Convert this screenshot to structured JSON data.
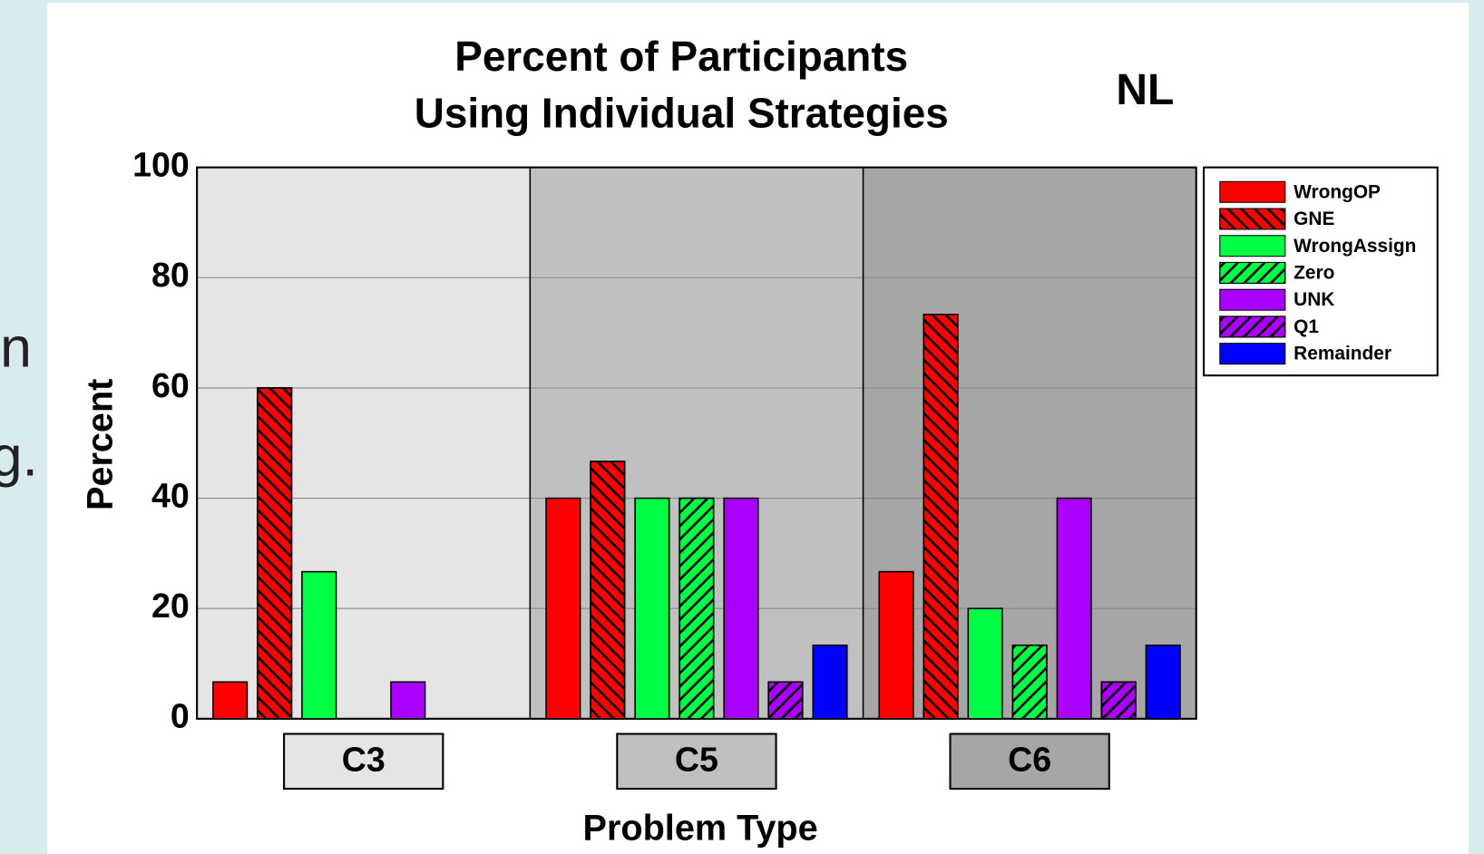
{
  "side_text": [
    "n",
    "g."
  ],
  "chart_data": {
    "type": "bar",
    "title": [
      "Percent of Participants",
      "Using Individual Strategies"
    ],
    "annotation": "NL",
    "y_label": "Percent",
    "x_label": "Problem Type",
    "categories": [
      "C3",
      "C5",
      "C6"
    ],
    "group_colors": [
      "#e5e5e5",
      "#c0c0c0",
      "#a6a6a6"
    ],
    "series": [
      {
        "name": "WrongOP",
        "color": "#ff0000",
        "hatch": "none",
        "values": [
          6.67,
          40,
          26.67
        ]
      },
      {
        "name": "GNE",
        "color": "#ff0000",
        "hatch": "back",
        "values": [
          60,
          46.67,
          73.33
        ]
      },
      {
        "name": "WrongAssign",
        "color": "#00ff44",
        "hatch": "none",
        "values": [
          26.67,
          40,
          20
        ]
      },
      {
        "name": "Zero",
        "color": "#00ff44",
        "hatch": "forward",
        "values": [
          0,
          40,
          13.33
        ]
      },
      {
        "name": "UNK",
        "color": "#aa00ff",
        "hatch": "none",
        "values": [
          6.67,
          40,
          40
        ]
      },
      {
        "name": "Q1",
        "color": "#aa00ff",
        "hatch": "forward",
        "values": [
          0,
          6.67,
          6.67
        ]
      },
      {
        "name": "Remainder",
        "color": "#0000ff",
        "hatch": "none",
        "values": [
          0,
          13.33,
          13.33
        ]
      }
    ],
    "ylim": [
      0,
      100
    ],
    "yticks": [
      0,
      20,
      40,
      60,
      80,
      100
    ],
    "grid": true,
    "legend": "right"
  }
}
